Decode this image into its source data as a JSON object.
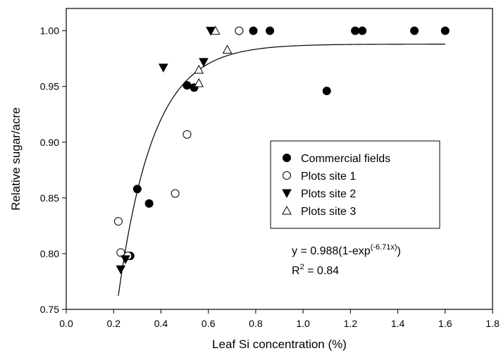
{
  "chart_data": {
    "type": "scatter",
    "title": "",
    "xlabel": "Leaf Si concentration (%)",
    "ylabel": "Relative sugar/acre",
    "xlim": [
      0.0,
      1.8
    ],
    "ylim": [
      0.75,
      1.02
    ],
    "x_ticks": [
      "0.0",
      "0.2",
      "0.4",
      "0.6",
      "0.8",
      "1.0",
      "1.2",
      "1.4",
      "1.6",
      "1.8"
    ],
    "y_ticks": [
      "0.75",
      "0.80",
      "0.85",
      "0.90",
      "0.95",
      "1.00"
    ],
    "grid": false,
    "legend_position": "center-right",
    "series": [
      {
        "name": "Commercial fields",
        "marker": "filled-circle",
        "color": "#000000",
        "points": [
          [
            0.27,
            0.798
          ],
          [
            0.3,
            0.858
          ],
          [
            0.35,
            0.845
          ],
          [
            0.51,
            0.951
          ],
          [
            0.54,
            0.949
          ],
          [
            0.79,
            1.0
          ],
          [
            0.86,
            1.0
          ],
          [
            1.1,
            0.946
          ],
          [
            1.22,
            1.0
          ],
          [
            1.25,
            1.0
          ],
          [
            1.47,
            1.0
          ],
          [
            1.6,
            1.0
          ]
        ]
      },
      {
        "name": "Plots site 1",
        "marker": "open-circle",
        "color": "#000000",
        "points": [
          [
            0.22,
            0.829
          ],
          [
            0.23,
            0.801
          ],
          [
            0.26,
            0.798
          ],
          [
            0.46,
            0.854
          ],
          [
            0.51,
            0.907
          ],
          [
            0.73,
            1.0
          ]
        ]
      },
      {
        "name": "Plots site 2",
        "marker": "filled-triangle-down",
        "color": "#000000",
        "points": [
          [
            0.23,
            0.786
          ],
          [
            0.25,
            0.795
          ],
          [
            0.41,
            0.967
          ],
          [
            0.58,
            0.972
          ],
          [
            0.61,
            1.0
          ]
        ]
      },
      {
        "name": "Plots site 3",
        "marker": "open-triangle-up",
        "color": "#000000",
        "points": [
          [
            0.56,
            0.965
          ],
          [
            0.56,
            0.953
          ],
          [
            0.63,
            1.0
          ],
          [
            0.68,
            0.983
          ]
        ]
      }
    ],
    "fit": {
      "a": 0.988,
      "b": 6.71,
      "x_start": 0.22,
      "x_end": 1.6,
      "equation_main": "y = 0.988(1-exp",
      "equation_sup": "(-6.71x)",
      "equation_close": ")",
      "r2_label": "R",
      "r2_sup": "2",
      "r2_value": " = 0.84"
    }
  }
}
